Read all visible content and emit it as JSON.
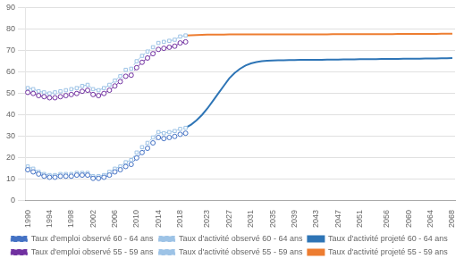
{
  "chart_data": {
    "type": "line",
    "xlim": [
      1989.5,
      2068.5
    ],
    "xticks": [
      1990,
      1994,
      1998,
      2002,
      2006,
      2010,
      2014,
      2018,
      2023,
      2027,
      2031,
      2035,
      2039,
      2043,
      2047,
      2051,
      2056,
      2060,
      2064,
      2068
    ],
    "ylim": [
      0,
      90
    ],
    "yticks": [
      0,
      10,
      20,
      30,
      40,
      50,
      60,
      70,
      80,
      90
    ],
    "grid": true,
    "legend": "bottom",
    "series": [
      {
        "name": "Taux d'emploi observé 60 - 64 ans",
        "color": "#4472C4",
        "marker": "circle",
        "line_style": "dashed",
        "x": [
          1990,
          1991,
          1992,
          1993,
          1994,
          1995,
          1996,
          1997,
          1998,
          1999,
          2000,
          2001,
          2002,
          2003,
          2004,
          2005,
          2006,
          2007,
          2008,
          2009,
          2010,
          2011,
          2012,
          2013,
          2014,
          2015,
          2016,
          2017,
          2018,
          2019
        ],
        "values": [
          14.5,
          13.5,
          12.5,
          11.5,
          11.0,
          11.0,
          11.5,
          11.5,
          11.5,
          12.0,
          12.0,
          12.0,
          10.5,
          10.5,
          11.0,
          12.0,
          13.5,
          14.5,
          16.0,
          17.0,
          20.0,
          22.5,
          24.5,
          27.0,
          29.5,
          29.0,
          29.5,
          30.0,
          31.0,
          31.5
        ]
      },
      {
        "name": "Taux d'activité observé 60 - 64 ans",
        "color": "#9DC3E6",
        "marker": "square",
        "line_style": "dashed",
        "x": [
          1990,
          1991,
          1992,
          1993,
          1994,
          1995,
          1996,
          1997,
          1998,
          1999,
          2000,
          2001,
          2002,
          2003,
          2004,
          2005,
          2006,
          2007,
          2008,
          2009,
          2010,
          2011,
          2012,
          2013,
          2014,
          2015,
          2016,
          2017,
          2018,
          2019
        ],
        "values": [
          16.0,
          15.0,
          13.5,
          12.5,
          12.0,
          12.0,
          12.5,
          12.5,
          12.5,
          13.0,
          13.0,
          13.0,
          11.5,
          11.5,
          12.0,
          13.5,
          15.0,
          16.0,
          18.0,
          19.0,
          22.5,
          25.0,
          27.0,
          29.5,
          32.0,
          31.5,
          32.0,
          32.5,
          33.5,
          34.0
        ]
      },
      {
        "name": "Taux d'activité projeté 60 - 64 ans",
        "color": "#2E75B6",
        "marker": "none",
        "line_style": "solid",
        "x": [
          2019,
          2020,
          2021,
          2022,
          2023,
          2024,
          2025,
          2026,
          2027,
          2028,
          2029,
          2030,
          2031,
          2032,
          2033,
          2034,
          2035,
          2036,
          2037,
          2038,
          2039,
          2040,
          2041,
          2042,
          2043,
          2044,
          2045,
          2046,
          2047,
          2048,
          2049,
          2050,
          2051,
          2052,
          2053,
          2054,
          2055,
          2056,
          2057,
          2058,
          2059,
          2060,
          2061,
          2062,
          2063,
          2064,
          2065,
          2066,
          2067,
          2068
        ],
        "values": [
          34.0,
          35.5,
          37.5,
          40.0,
          43.0,
          46.5,
          50.0,
          53.5,
          57.0,
          59.5,
          61.5,
          63.0,
          64.0,
          64.6,
          65.0,
          65.2,
          65.3,
          65.4,
          65.4,
          65.5,
          65.5,
          65.6,
          65.6,
          65.7,
          65.7,
          65.7,
          65.8,
          65.8,
          65.8,
          65.9,
          65.9,
          65.9,
          66.0,
          66.0,
          66.0,
          66.0,
          66.1,
          66.1,
          66.1,
          66.1,
          66.2,
          66.2,
          66.2,
          66.2,
          66.3,
          66.3,
          66.3,
          66.4,
          66.4,
          66.5
        ]
      },
      {
        "name": "Taux d'emploi observé 55 - 59 ans",
        "color": "#7030A0",
        "marker": "circle",
        "line_style": "dashed",
        "x": [
          1990,
          1991,
          1992,
          1993,
          1994,
          1995,
          1996,
          1997,
          1998,
          1999,
          2000,
          2001,
          2002,
          2003,
          2004,
          2005,
          2006,
          2007,
          2008,
          2009,
          2010,
          2011,
          2012,
          2013,
          2014,
          2015,
          2016,
          2017,
          2018,
          2019
        ],
        "values": [
          50.5,
          50.0,
          49.0,
          48.5,
          48.0,
          48.0,
          48.5,
          49.0,
          49.5,
          50.0,
          51.0,
          51.5,
          49.5,
          49.0,
          50.0,
          51.5,
          53.5,
          55.5,
          58.0,
          58.5,
          62.0,
          64.5,
          66.5,
          68.5,
          70.5,
          71.0,
          71.5,
          72.0,
          73.5,
          74.0
        ]
      },
      {
        "name": "Taux d'activité observé 55 - 59 ans",
        "color": "#9DC3E6",
        "marker": "square",
        "line_style": "dashed",
        "x": [
          1990,
          1991,
          1992,
          1993,
          1994,
          1995,
          1996,
          1997,
          1998,
          1999,
          2000,
          2001,
          2002,
          2003,
          2004,
          2005,
          2006,
          2007,
          2008,
          2009,
          2010,
          2011,
          2012,
          2013,
          2014,
          2015,
          2016,
          2017,
          2018,
          2019
        ],
        "values": [
          52.5,
          52.0,
          51.0,
          50.5,
          50.0,
          50.5,
          51.0,
          51.5,
          52.0,
          52.5,
          53.5,
          54.0,
          52.0,
          51.5,
          52.5,
          54.0,
          56.0,
          58.0,
          61.0,
          61.5,
          65.0,
          67.5,
          69.5,
          71.5,
          73.5,
          74.0,
          74.5,
          75.0,
          76.5,
          77.0
        ]
      },
      {
        "name": "Taux d'activité projeté 55 - 59 ans",
        "color": "#ED7D31",
        "marker": "none",
        "line_style": "solid",
        "x": [
          2019,
          2020,
          2021,
          2022,
          2023,
          2024,
          2025,
          2026,
          2027,
          2028,
          2029,
          2030,
          2031,
          2032,
          2033,
          2034,
          2035,
          2036,
          2037,
          2038,
          2039,
          2040,
          2041,
          2042,
          2043,
          2044,
          2045,
          2046,
          2047,
          2048,
          2049,
          2050,
          2051,
          2052,
          2053,
          2054,
          2055,
          2056,
          2057,
          2058,
          2059,
          2060,
          2061,
          2062,
          2063,
          2064,
          2065,
          2066,
          2067,
          2068
        ],
        "values": [
          77.0,
          77.1,
          77.2,
          77.3,
          77.4,
          77.4,
          77.4,
          77.4,
          77.5,
          77.5,
          77.5,
          77.5,
          77.5,
          77.5,
          77.5,
          77.5,
          77.5,
          77.5,
          77.5,
          77.5,
          77.5,
          77.5,
          77.5,
          77.5,
          77.5,
          77.5,
          77.5,
          77.6,
          77.6,
          77.6,
          77.6,
          77.6,
          77.6,
          77.6,
          77.6,
          77.6,
          77.6,
          77.6,
          77.6,
          77.7,
          77.7,
          77.7,
          77.7,
          77.7,
          77.7,
          77.7,
          77.7,
          77.8,
          77.8,
          77.8
        ]
      }
    ]
  }
}
